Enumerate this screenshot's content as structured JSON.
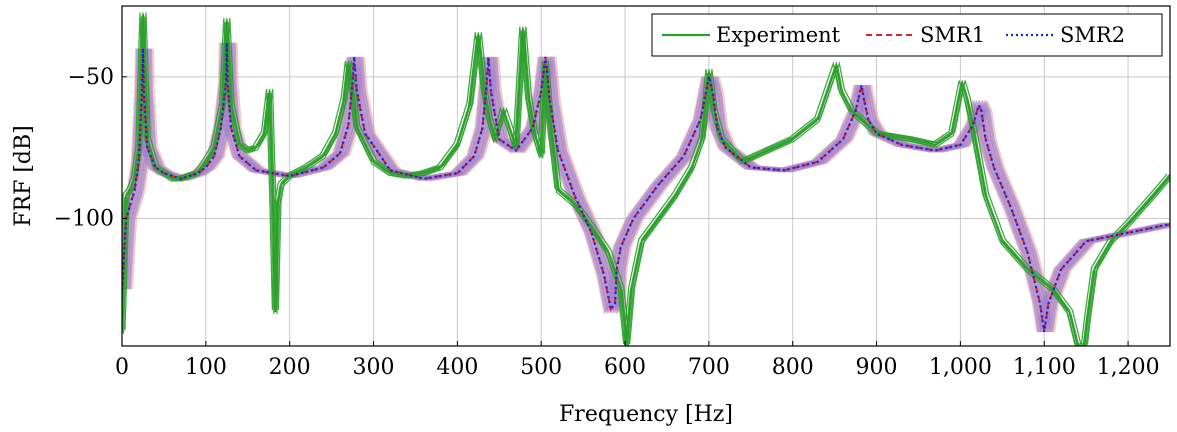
{
  "chart_data": {
    "type": "line",
    "title": "",
    "xlabel": "Frequency [Hz]",
    "ylabel": "FRF [dB]",
    "xlim": [
      0,
      1250
    ],
    "ylim": [
      -145,
      -25
    ],
    "grid": true,
    "legend_position": "top-right",
    "x_ticks": [
      0,
      100,
      200,
      300,
      400,
      500,
      600,
      700,
      800,
      900,
      1000,
      1100,
      1200
    ],
    "x_tick_labels": [
      "0",
      "100",
      "200",
      "300",
      "400",
      "500",
      "600",
      "700",
      "800",
      "900",
      "1,000",
      "1,100",
      "1,200"
    ],
    "y_ticks": [
      -100,
      -50
    ],
    "y_tick_labels": [
      "−100",
      "−50"
    ],
    "colors": {
      "experiment": "#2ca02c",
      "smr1": "#d62728",
      "smr2": "#1f1fd6",
      "smr1_band": "#e8a0a0",
      "smr2_band": "#9b7fd6"
    },
    "series": [
      {
        "name": "Experiment",
        "style": "solid",
        "x": [
          0,
          5,
          10,
          15,
          20,
          25,
          30,
          40,
          50,
          60,
          70,
          80,
          90,
          100,
          110,
          120,
          125,
          130,
          140,
          150,
          160,
          170,
          176,
          180,
          183,
          186,
          190,
          200,
          220,
          240,
          255,
          265,
          270,
          275,
          280,
          300,
          320,
          340,
          360,
          380,
          400,
          415,
          425,
          432,
          438,
          445,
          455,
          470,
          478,
          485,
          492,
          500,
          505,
          512,
          520,
          540,
          560,
          580,
          595,
          602,
          608,
          620,
          640,
          660,
          680,
          692,
          700,
          706,
          715,
          740,
          770,
          800,
          830,
          845,
          852,
          858,
          870,
          900,
          940,
          970,
          990,
          1002,
          1008,
          1015,
          1030,
          1050,
          1080,
          1110,
          1130,
          1140,
          1148,
          1152,
          1160,
          1180,
          1200,
          1230,
          1250
        ],
        "y": [
          -140,
          -92,
          -90,
          -86,
          -75,
          -28,
          -72,
          -82,
          -84,
          -86,
          -86,
          -85,
          -84,
          -80,
          -75,
          -60,
          -30,
          -60,
          -74,
          -76,
          -75,
          -70,
          -55,
          -95,
          -133,
          -95,
          -88,
          -85,
          -82,
          -78,
          -70,
          -58,
          -45,
          -55,
          -68,
          -80,
          -84,
          -85,
          -84,
          -82,
          -74,
          -60,
          -35,
          -55,
          -65,
          -72,
          -62,
          -75,
          -33,
          -58,
          -70,
          -78,
          -45,
          -70,
          -90,
          -95,
          -103,
          -112,
          -125,
          -145,
          -125,
          -108,
          -100,
          -92,
          -82,
          -72,
          -48,
          -62,
          -72,
          -80,
          -76,
          -72,
          -65,
          -52,
          -46,
          -55,
          -62,
          -70,
          -72,
          -74,
          -70,
          -52,
          -58,
          -68,
          -92,
          -108,
          -118,
          -125,
          -133,
          -145,
          -145,
          -135,
          -118,
          -108,
          -102,
          -92,
          -85
        ]
      },
      {
        "name": "SMR1",
        "style": "dashed",
        "x": [
          0,
          5,
          10,
          15,
          20,
          24,
          25,
          26,
          30,
          40,
          50,
          60,
          70,
          80,
          90,
          100,
          110,
          118,
          124,
          125,
          126,
          130,
          140,
          160,
          200,
          240,
          260,
          270,
          275,
          277,
          280,
          290,
          320,
          360,
          400,
          420,
          430,
          435,
          437,
          440,
          450,
          470,
          490,
          500,
          505,
          507,
          510,
          520,
          540,
          560,
          575,
          583,
          588,
          590,
          595,
          610,
          640,
          670,
          690,
          700,
          705,
          710,
          720,
          750,
          790,
          830,
          860,
          875,
          882,
          885,
          890,
          900,
          930,
          970,
          1000,
          1015,
          1022,
          1025,
          1030,
          1040,
          1060,
          1080,
          1095,
          1100,
          1105,
          1120,
          1150,
          1200,
          1250
        ],
        "y": [
          -125,
          -100,
          -95,
          -90,
          -80,
          -55,
          -40,
          -55,
          -75,
          -82,
          -84,
          -85,
          -86,
          -85,
          -84,
          -82,
          -78,
          -68,
          -52,
          -38,
          -52,
          -68,
          -78,
          -83,
          -85,
          -82,
          -77,
          -67,
          -52,
          -43,
          -55,
          -70,
          -83,
          -86,
          -84,
          -78,
          -68,
          -52,
          -43,
          -55,
          -72,
          -76,
          -68,
          -55,
          -43,
          -48,
          -58,
          -76,
          -92,
          -105,
          -120,
          -132,
          -130,
          -118,
          -110,
          -100,
          -88,
          -78,
          -65,
          -50,
          -56,
          -68,
          -75,
          -82,
          -83,
          -80,
          -72,
          -62,
          -53,
          -58,
          -65,
          -70,
          -74,
          -76,
          -74,
          -67,
          -60,
          -62,
          -72,
          -82,
          -96,
          -112,
          -130,
          -140,
          -130,
          -118,
          -108,
          -105,
          -102
        ]
      },
      {
        "name": "SMR2",
        "style": "dotted",
        "x": [
          0,
          5,
          10,
          15,
          20,
          24,
          25,
          26,
          30,
          40,
          50,
          60,
          70,
          80,
          90,
          100,
          110,
          118,
          124,
          125,
          126,
          130,
          140,
          160,
          200,
          240,
          260,
          270,
          275,
          277,
          280,
          290,
          320,
          360,
          400,
          420,
          430,
          435,
          437,
          440,
          450,
          470,
          490,
          500,
          505,
          507,
          510,
          520,
          540,
          560,
          575,
          583,
          588,
          590,
          595,
          610,
          640,
          670,
          690,
          700,
          705,
          710,
          720,
          750,
          790,
          830,
          860,
          875,
          882,
          885,
          890,
          900,
          930,
          970,
          1000,
          1015,
          1022,
          1025,
          1030,
          1040,
          1060,
          1080,
          1095,
          1100,
          1105,
          1120,
          1150,
          1200,
          1250
        ],
        "y": [
          -125,
          -100,
          -95,
          -90,
          -80,
          -55,
          -40,
          -55,
          -75,
          -82,
          -84,
          -85,
          -86,
          -85,
          -84,
          -82,
          -78,
          -68,
          -52,
          -38,
          -52,
          -68,
          -78,
          -83,
          -85,
          -82,
          -77,
          -67,
          -52,
          -43,
          -55,
          -70,
          -83,
          -86,
          -84,
          -78,
          -68,
          -52,
          -43,
          -55,
          -72,
          -76,
          -68,
          -55,
          -43,
          -48,
          -58,
          -76,
          -92,
          -105,
          -120,
          -132,
          -130,
          -118,
          -110,
          -100,
          -88,
          -78,
          -65,
          -50,
          -56,
          -68,
          -75,
          -82,
          -83,
          -80,
          -72,
          -62,
          -53,
          -58,
          -65,
          -70,
          -74,
          -76,
          -74,
          -67,
          -60,
          -62,
          -72,
          -82,
          -96,
          -112,
          -130,
          -140,
          -130,
          -118,
          -108,
          -105,
          -102
        ]
      }
    ]
  }
}
